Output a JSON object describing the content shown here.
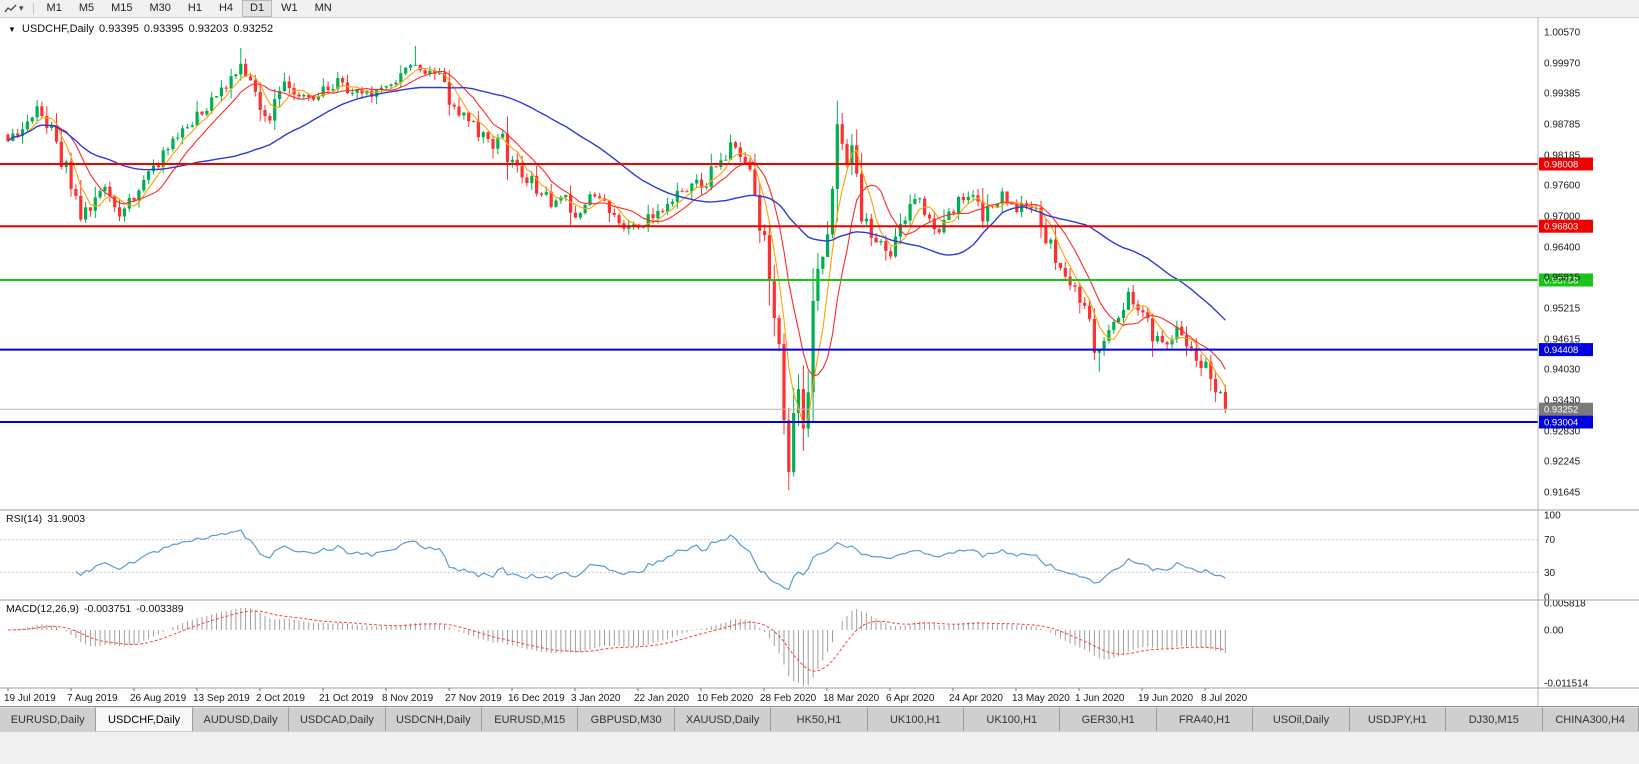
{
  "toolbar": {
    "timeframes": [
      "M1",
      "M5",
      "M15",
      "M30",
      "H1",
      "H4",
      "D1",
      "W1",
      "MN"
    ],
    "active_timeframe": "D1"
  },
  "icons": {
    "dropdown_caret": "▾",
    "title_triangle": "▼"
  },
  "chart": {
    "symbol": "USDCHF,Daily",
    "ohlc": {
      "open": "0.93395",
      "high": "0.93395",
      "low": "0.93203",
      "close": "0.93252"
    },
    "y_axis_labels": [
      "1.00570",
      "0.99970",
      "0.99385",
      "0.98785",
      "0.98185",
      "0.97600",
      "0.97000",
      "0.96400",
      "0.95815",
      "0.95215",
      "0.94615",
      "0.94030",
      "0.93430",
      "0.92830",
      "0.92245",
      "0.91645"
    ],
    "x_axis_labels": [
      "19 Jul 2019",
      "7 Aug 2019",
      "26 Aug 2019",
      "13 Sep 2019",
      "2 Oct 2019",
      "21 Oct 2019",
      "8 Nov 2019",
      "27 Nov 2019",
      "16 Dec 2019",
      "3 Jan 2020",
      "22 Jan 2020",
      "10 Feb 2020",
      "28 Feb 2020",
      "18 Mar 2020",
      "6 Apr 2020",
      "24 Apr 2020",
      "13 May 2020",
      "1 Jun 2020",
      "19 Jun 2020",
      "8 Jul 2020"
    ]
  },
  "rsi": {
    "name": "RSI(14)",
    "value": "31.9003",
    "levels": [
      "100",
      "70",
      "30",
      "0"
    ]
  },
  "macd": {
    "name": "MACD(12,26,9)",
    "value_main": "-0.003751",
    "value_signal": "-0.003389",
    "levels": [
      "0.005818",
      "0.00",
      "-0.011514"
    ]
  },
  "tabs": {
    "active_index": 1,
    "items": [
      "EURUSD,Daily",
      "USDCHF,Daily",
      "AUDUSD,Daily",
      "USDCAD,Daily",
      "USDCNH,Daily",
      "EURUSD,M15",
      "GBPUSD,M30",
      "XAUUSD,Daily",
      "HK50,H1",
      "UK100,H1",
      "UK100,H1",
      "GER30,H1",
      "FRA40,H1",
      "USOil,Daily",
      "USDJPY,H1",
      "DJ30,M15",
      "CHINA300,H4"
    ]
  },
  "colors": {
    "bull": "#00b050",
    "bear": "#ff3030",
    "ma_fast": "#ffa200",
    "ma_mid": "#ff2a2a",
    "ma_slow": "#2c3bd6",
    "rsi": "#5b9bd5",
    "macd_hist": "#9e9e9e",
    "macd_signal": "#ff4040",
    "hline_red": "#f20000",
    "hline_green": "#18c418",
    "hline_blue": "#0000e6",
    "current_price_bg": "#7a7a7a"
  },
  "chart_data": {
    "type": "candlestick",
    "symbol": "USDCHF",
    "period": "Daily",
    "price_range": [
      0.91645,
      1.0057
    ],
    "num_candles": 252,
    "last_close": 0.93252,
    "close_anchors": [
      [
        0,
        0.984
      ],
      [
        2,
        0.9862
      ],
      [
        4,
        0.9885
      ],
      [
        6,
        0.9902
      ],
      [
        8,
        0.9878
      ],
      [
        10,
        0.9832
      ],
      [
        13,
        0.976
      ],
      [
        15,
        0.9702
      ],
      [
        17,
        0.9722
      ],
      [
        19,
        0.9758
      ],
      [
        21,
        0.9735
      ],
      [
        23,
        0.9703
      ],
      [
        26,
        0.9742
      ],
      [
        29,
        0.9788
      ],
      [
        32,
        0.9818
      ],
      [
        35,
        0.9848
      ],
      [
        39,
        0.9892
      ],
      [
        43,
        0.9928
      ],
      [
        46,
        0.9958
      ],
      [
        48,
        0.9982
      ],
      [
        50,
        0.9948
      ],
      [
        52,
        0.9918
      ],
      [
        54,
        0.9892
      ],
      [
        56,
        0.9934
      ],
      [
        58,
        0.9958
      ],
      [
        60,
        0.9938
      ],
      [
        63,
        0.9924
      ],
      [
        65,
        0.9944
      ],
      [
        68,
        0.9958
      ],
      [
        71,
        0.9938
      ],
      [
        74,
        0.9954
      ],
      [
        76,
        0.9934
      ],
      [
        78,
        0.995
      ],
      [
        81,
        0.9974
      ],
      [
        84,
        0.9992
      ],
      [
        86,
        0.9964
      ],
      [
        88,
        0.9982
      ],
      [
        91,
        0.993
      ],
      [
        94,
        0.9898
      ],
      [
        97,
        0.9864
      ],
      [
        100,
        0.984
      ],
      [
        102,
        0.9854
      ],
      [
        104,
        0.98
      ],
      [
        107,
        0.9774
      ],
      [
        110,
        0.9744
      ],
      [
        113,
        0.9718
      ],
      [
        115,
        0.9734
      ],
      [
        117,
        0.97
      ],
      [
        119,
        0.972
      ],
      [
        121,
        0.9744
      ],
      [
        123,
        0.9728
      ],
      [
        125,
        0.9708
      ],
      [
        127,
        0.9688
      ],
      [
        130,
        0.9674
      ],
      [
        133,
        0.97
      ],
      [
        136,
        0.9724
      ],
      [
        139,
        0.9748
      ],
      [
        141,
        0.9768
      ],
      [
        143,
        0.9758
      ],
      [
        145,
        0.9784
      ],
      [
        147,
        0.981
      ],
      [
        149,
        0.9834
      ],
      [
        151,
        0.9804
      ],
      [
        153,
        0.9778
      ],
      [
        155,
        0.97
      ],
      [
        156,
        0.964
      ],
      [
        157,
        0.956
      ],
      [
        158,
        0.948
      ],
      [
        159,
        0.94
      ],
      [
        160,
        0.93
      ],
      [
        161,
        0.922
      ],
      [
        162,
        0.928
      ],
      [
        163,
        0.935
      ],
      [
        164,
        0.93
      ],
      [
        165,
        0.942
      ],
      [
        166,
        0.955
      ],
      [
        167,
        0.9648
      ],
      [
        168,
        0.96
      ],
      [
        169,
        0.97
      ],
      [
        170,
        0.9818
      ],
      [
        171,
        0.9878
      ],
      [
        172,
        0.984
      ],
      [
        173,
        0.9792
      ],
      [
        174,
        0.983
      ],
      [
        175,
        0.9768
      ],
      [
        176,
        0.9712
      ],
      [
        178,
        0.9672
      ],
      [
        180,
        0.9642
      ],
      [
        182,
        0.963
      ],
      [
        184,
        0.9678
      ],
      [
        186,
        0.972
      ],
      [
        188,
        0.9744
      ],
      [
        190,
        0.97
      ],
      [
        192,
        0.9672
      ],
      [
        195,
        0.972
      ],
      [
        197,
        0.9744
      ],
      [
        199,
        0.973
      ],
      [
        201,
        0.9702
      ],
      [
        203,
        0.972
      ],
      [
        205,
        0.974
      ],
      [
        208,
        0.9716
      ],
      [
        210,
        0.973
      ],
      [
        212,
        0.97
      ],
      [
        214,
        0.9662
      ],
      [
        216,
        0.9622
      ],
      [
        218,
        0.9582
      ],
      [
        221,
        0.9532
      ],
      [
        223,
        0.9482
      ],
      [
        225,
        0.9422
      ],
      [
        227,
        0.9462
      ],
      [
        229,
        0.9512
      ],
      [
        231,
        0.9542
      ],
      [
        234,
        0.9506
      ],
      [
        236,
        0.9472
      ],
      [
        238,
        0.9442
      ],
      [
        240,
        0.9462
      ],
      [
        242,
        0.9482
      ],
      [
        244,
        0.9442
      ],
      [
        247,
        0.9402
      ],
      [
        249,
        0.9372
      ],
      [
        251,
        0.93252
      ]
    ],
    "wick_extremes": {
      "48": {
        "high": 1.0026
      },
      "84": {
        "high": 1.003
      },
      "161": {
        "low": 0.9168
      },
      "171": {
        "high": 0.9906
      },
      "225": {
        "low": 0.9398
      }
    },
    "hlines": [
      {
        "price": 0.98008,
        "label": "0.98008",
        "color": "#f20000"
      },
      {
        "price": 0.96803,
        "label": "0.96803",
        "color": "#f20000"
      },
      {
        "price": 0.95758,
        "label": "0.95758",
        "color": "#18c418"
      },
      {
        "price": 0.94408,
        "label": "0.94408",
        "color": "#0000e6"
      },
      {
        "price": 0.93004,
        "label": "0.93004",
        "color": "#0000e6"
      }
    ],
    "current_price": {
      "value": 0.93252,
      "label": "0.93252",
      "color": "#7a7a7a"
    },
    "rsi_current": 31.9003,
    "macd_current": {
      "main": -0.003751,
      "signal": -0.003389
    }
  }
}
